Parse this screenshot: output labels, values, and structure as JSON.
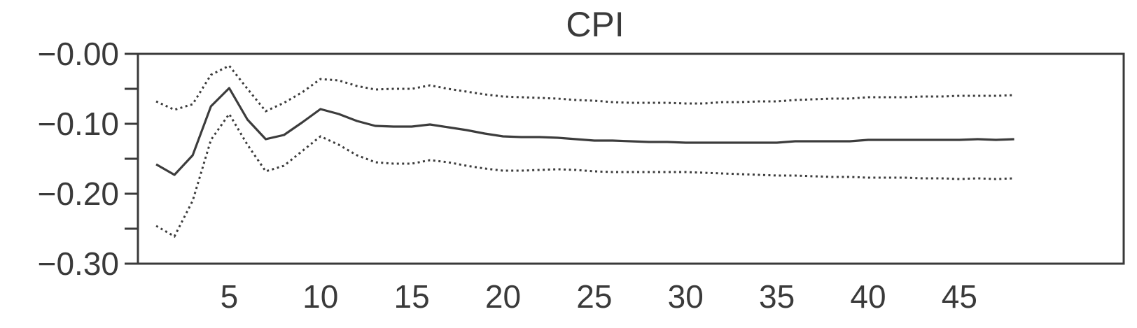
{
  "chart_data": {
    "type": "line",
    "title": "CPI",
    "xlabel": "",
    "ylabel": "",
    "xlim": [
      0,
      54
    ],
    "ylim": [
      -0.3,
      0.0
    ],
    "xticks": [
      5,
      10,
      15,
      20,
      25,
      30,
      35,
      40,
      45
    ],
    "yticks": [
      0.0,
      -0.1,
      -0.2,
      -0.3
    ],
    "ytick_labels": [
      "−0.00",
      "−0.10",
      "−0.20",
      "−0.30"
    ],
    "grid": false,
    "legend": "none",
    "colors": {
      "line": "#3c3c3c",
      "axis": "#3a3a3a"
    },
    "x": [
      1,
      2,
      3,
      4,
      5,
      6,
      7,
      8,
      9,
      10,
      11,
      12,
      13,
      14,
      15,
      16,
      17,
      18,
      19,
      20,
      21,
      22,
      23,
      24,
      25,
      26,
      27,
      28,
      29,
      30,
      31,
      32,
      33,
      34,
      35,
      36,
      37,
      38,
      39,
      40,
      41,
      42,
      43,
      44,
      45,
      46,
      47,
      48
    ],
    "series": [
      {
        "style": "solid",
        "values": [
          -0.158,
          -0.173,
          -0.145,
          -0.075,
          -0.049,
          -0.094,
          -0.122,
          -0.116,
          -0.098,
          -0.079,
          -0.086,
          -0.096,
          -0.103,
          -0.104,
          -0.104,
          -0.101,
          -0.105,
          -0.109,
          -0.114,
          -0.118,
          -0.119,
          -0.119,
          -0.12,
          -0.122,
          -0.124,
          -0.124,
          -0.125,
          -0.126,
          -0.126,
          -0.127,
          -0.127,
          -0.127,
          -0.127,
          -0.127,
          -0.127,
          -0.125,
          -0.125,
          -0.125,
          -0.125,
          -0.123,
          -0.123,
          -0.123,
          -0.123,
          -0.123,
          -0.123,
          -0.122,
          -0.123,
          -0.122
        ]
      },
      {
        "style": "dotted",
        "values": [
          -0.068,
          -0.08,
          -0.072,
          -0.03,
          -0.017,
          -0.05,
          -0.082,
          -0.07,
          -0.055,
          -0.036,
          -0.038,
          -0.046,
          -0.051,
          -0.05,
          -0.05,
          -0.045,
          -0.05,
          -0.054,
          -0.058,
          -0.061,
          -0.062,
          -0.063,
          -0.064,
          -0.066,
          -0.067,
          -0.069,
          -0.07,
          -0.07,
          -0.07,
          -0.071,
          -0.071,
          -0.069,
          -0.069,
          -0.068,
          -0.068,
          -0.066,
          -0.065,
          -0.064,
          -0.064,
          -0.062,
          -0.062,
          -0.062,
          -0.061,
          -0.061,
          -0.06,
          -0.06,
          -0.06,
          -0.059
        ]
      },
      {
        "style": "dotted",
        "values": [
          -0.246,
          -0.261,
          -0.21,
          -0.123,
          -0.086,
          -0.13,
          -0.168,
          -0.16,
          -0.139,
          -0.118,
          -0.13,
          -0.145,
          -0.155,
          -0.157,
          -0.157,
          -0.152,
          -0.155,
          -0.16,
          -0.164,
          -0.167,
          -0.167,
          -0.166,
          -0.165,
          -0.166,
          -0.168,
          -0.169,
          -0.169,
          -0.169,
          -0.169,
          -0.169,
          -0.17,
          -0.171,
          -0.172,
          -0.173,
          -0.174,
          -0.174,
          -0.175,
          -0.176,
          -0.176,
          -0.177,
          -0.177,
          -0.177,
          -0.178,
          -0.178,
          -0.179,
          -0.178,
          -0.179,
          -0.178
        ]
      }
    ]
  }
}
